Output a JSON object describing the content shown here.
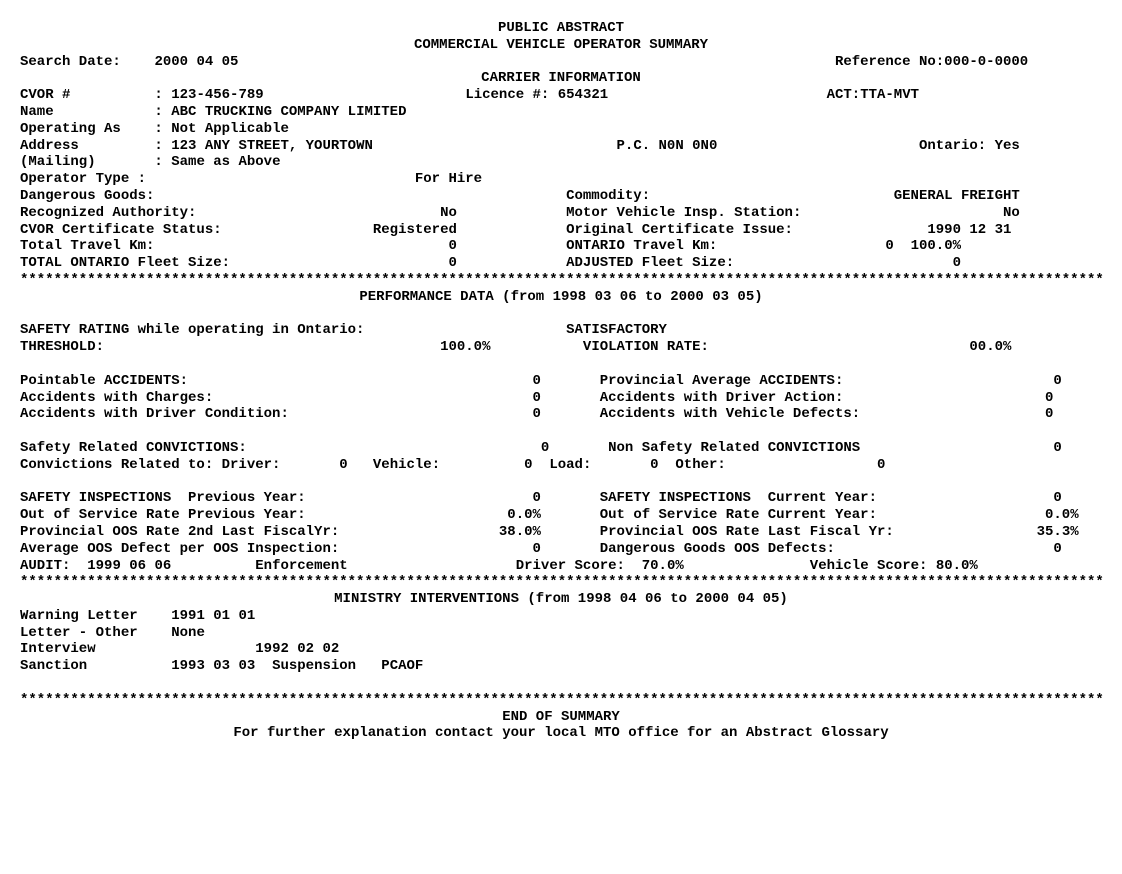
{
  "title1": "PUBLIC ABSTRACT",
  "title2": "COMMERCIAL VEHICLE OPERATOR SUMMARY",
  "search_date_label": "Search Date:",
  "search_date": "2000 04 05",
  "reference_label": "Reference No:",
  "reference_no": "000-0-0000",
  "section_carrier": "CARRIER INFORMATION",
  "cvor_label": "CVOR #",
  "cvor": "123-456-789",
  "licence_label": "Licence #:",
  "licence": "654321",
  "act_label": "ACT:",
  "act": "TTA-MVT",
  "name_label": "Name",
  "name": "ABC TRUCKING COMPANY LIMITED",
  "operating_label": "Operating As",
  "operating": "Not Applicable",
  "address_label": "Address",
  "address": "123 ANY STREET, YOURTOWN",
  "pc_label": "P.C.",
  "pc": "N0N 0N0",
  "ontario_label": "Ontario:",
  "ontario": "Yes",
  "mailing_label": "(Mailing)",
  "mailing": "Same as Above",
  "operator_type_label": "Operator Type :",
  "operator_type": "For Hire",
  "dangerous_goods_label": "Dangerous Goods:",
  "commodity_label": "Commodity:",
  "commodity": "GENERAL FREIGHT",
  "recognized_auth_label": "Recognized Authority:",
  "recognized_auth": "No",
  "mvis_label": "Motor Vehicle Insp. Station:",
  "mvis": "No",
  "cvor_cert_label": "CVOR Certificate Status:",
  "cvor_cert": "Registered",
  "orig_cert_label": "Original Certificate Issue:",
  "orig_cert": "1990 12 31",
  "total_travel_label": "Total Travel Km:",
  "total_travel": "0",
  "ont_travel_label": "ONTARIO Travel Km:",
  "ont_travel": "0",
  "ont_travel_pct": "100.0%",
  "total_fleet_label": "TOTAL ONTARIO Fleet Size:",
  "total_fleet": "0",
  "adj_fleet_label": "ADJUSTED Fleet Size:",
  "adj_fleet": "0",
  "perf_header": "PERFORMANCE DATA (from 1998 03 06 to 2000 03 05)",
  "safety_rating_label": "SAFETY RATING while operating in Ontario:",
  "safety_rating": "SATISFACTORY",
  "threshold_label": "THRESHOLD:",
  "threshold": "100.0%",
  "violation_label": "VIOLATION RATE:",
  "violation": "00.0%",
  "point_acc_label": "Pointable ACCIDENTS:",
  "point_acc": "0",
  "prov_acc_label": "Provincial Average ACCIDENTS:",
  "prov_acc": "0",
  "acc_charges_label": "Accidents with Charges:",
  "acc_charges": "0",
  "acc_driver_label": "Accidents with Driver Action:",
  "acc_driver": "0",
  "acc_cond_label": "Accidents with Driver Condition:",
  "acc_cond": "0",
  "acc_veh_label": "Accidents with Vehicle Defects:",
  "acc_veh": "0",
  "safety_conv_label": "Safety Related CONVICTIONS:",
  "safety_conv": "0",
  "nonsafety_conv_label": "Non Safety Related CONVICTIONS",
  "nonsafety_conv": "0",
  "conv_related_label": "Convictions Related to: Driver:",
  "conv_driver": "0",
  "conv_veh_label": "Vehicle:",
  "conv_veh": "0",
  "conv_load_label": "Load:",
  "conv_load": "0",
  "conv_other_label": "Other:",
  "conv_other": "0",
  "insp_prev_label": "SAFETY INSPECTIONS  Previous Year:",
  "insp_prev": "0",
  "insp_curr_label": "SAFETY INSPECTIONS  Current Year:",
  "insp_curr": "0",
  "oos_prev_label": "Out of Service Rate Previous Year:",
  "oos_prev": "0.0%",
  "oos_curr_label": "Out of Service Rate Current Year:",
  "oos_curr": "0.0%",
  "prov_oos2_label": "Provincial OOS Rate 2nd Last FiscalYr:",
  "prov_oos2": "38.0%",
  "prov_oos1_label": "Provincial OOS Rate Last Fiscal Yr:",
  "prov_oos1": "35.3%",
  "avg_oos_label": "Average OOS Defect per OOS Inspection:",
  "avg_oos": "0",
  "dg_oos_label": "Dangerous Goods OOS Defects:",
  "dg_oos": "0",
  "audit_label": "AUDIT:",
  "audit_date": "1999 06 06",
  "audit_type": "Enforcement",
  "driver_score_label": "Driver Score:",
  "driver_score": "70.0%",
  "vehicle_score_label": "Vehicle Score:",
  "vehicle_score": "80.0%",
  "ministry_header": "MINISTRY INTERVENTIONS (from 1998 04 06 to 2000 04 05)",
  "warn_label": "Warning Letter",
  "warn_date": "1991 01 01",
  "letter_label": "Letter - Other",
  "letter_val": "None",
  "interview_label": "Interview",
  "interview_date": "1992 02 02",
  "sanction_label": "Sanction",
  "sanction_date": "1993 03 03",
  "sanction_type": "Suspension",
  "sanction_code": "PCAOF",
  "end": "END OF SUMMARY",
  "footer": "For further explanation contact your local MTO office for an Abstract Glossary"
}
